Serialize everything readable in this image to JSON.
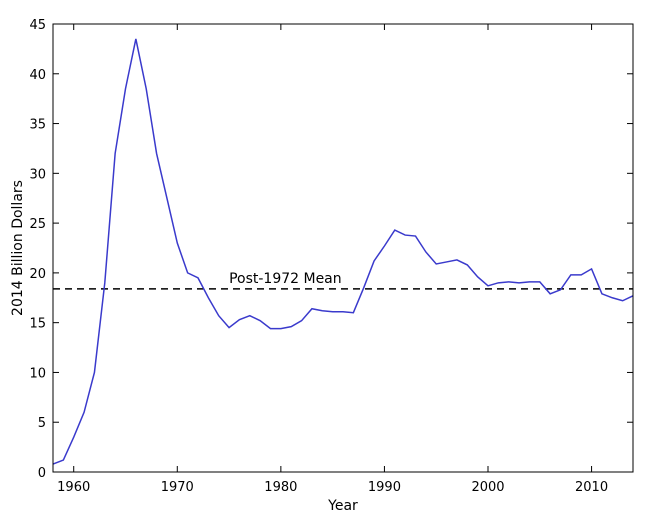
{
  "chart_data": {
    "type": "line",
    "title": "",
    "xlabel": "Year",
    "ylabel": "2014 Billion Dollars",
    "xlim": [
      1958,
      2014
    ],
    "ylim": [
      0,
      45
    ],
    "xticks": [
      1960,
      1970,
      1980,
      1990,
      2000,
      2010
    ],
    "yticks": [
      0,
      5,
      10,
      15,
      20,
      25,
      30,
      35,
      40,
      45
    ],
    "grid": false,
    "legend": "none",
    "line_color": "#3a3acc",
    "reference_line": {
      "label": "Post-1972 Mean",
      "value": 18.4,
      "style": "dashed",
      "color": "#000000"
    },
    "series": [
      {
        "x": [
          1958,
          1959,
          1960,
          1961,
          1962,
          1963,
          1964,
          1965,
          1966,
          1967,
          1968,
          1969,
          1970,
          1971,
          1972,
          1973,
          1974,
          1975,
          1976,
          1977,
          1978,
          1979,
          1980,
          1981,
          1982,
          1983,
          1984,
          1985,
          1986,
          1987,
          1988,
          1989,
          1990,
          1991,
          1992,
          1993,
          1994,
          1995,
          1996,
          1997,
          1998,
          1999,
          2000,
          2001,
          2002,
          2003,
          2004,
          2005,
          2006,
          2007,
          2008,
          2009,
          2010,
          2011,
          2012,
          2013,
          2014
        ],
        "y": [
          0.8,
          1.2,
          3.5,
          6.0,
          10.0,
          19.0,
          32.0,
          38.5,
          43.5,
          38.5,
          32.0,
          27.5,
          23.0,
          20.0,
          19.5,
          17.5,
          15.7,
          14.5,
          15.3,
          15.7,
          15.2,
          14.4,
          14.4,
          14.6,
          15.2,
          16.4,
          16.2,
          16.1,
          16.1,
          16.0,
          18.5,
          21.2,
          22.7,
          24.3,
          23.8,
          23.7,
          22.1,
          20.9,
          21.1,
          21.3,
          20.8,
          19.6,
          18.7,
          19.0,
          19.1,
          19.0,
          19.1,
          19.1,
          17.9,
          18.3,
          19.8,
          19.8,
          20.4,
          17.9,
          17.5,
          17.2,
          17.7
        ]
      }
    ]
  }
}
